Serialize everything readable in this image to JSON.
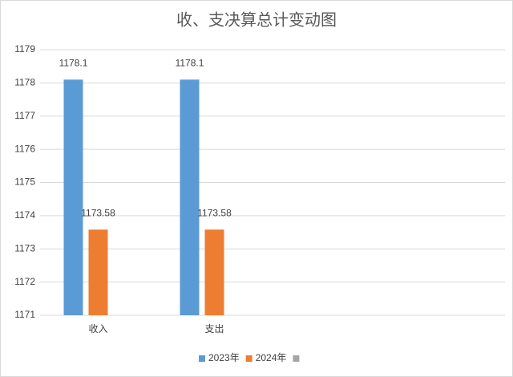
{
  "chart_data": {
    "type": "bar",
    "title": "收、支决算总计变动图",
    "categories": [
      "收入",
      "支出",
      null,
      null
    ],
    "series": [
      {
        "name": "2023年",
        "color": "#5b9bd5",
        "values": [
          1178.1,
          1178.1,
          null,
          null
        ]
      },
      {
        "name": "2024年",
        "color": "#ed7d31",
        "values": [
          1173.58,
          1173.58,
          null,
          null
        ]
      },
      {
        "name": null,
        "color": "#a5a5a5",
        "values": [
          null,
          null,
          null,
          null
        ]
      }
    ],
    "ylim": [
      1171,
      1179
    ],
    "yticks": [
      1171,
      1172,
      1173,
      1174,
      1175,
      1176,
      1177,
      1178,
      1179
    ],
    "grid": true,
    "legend": "bottom"
  }
}
